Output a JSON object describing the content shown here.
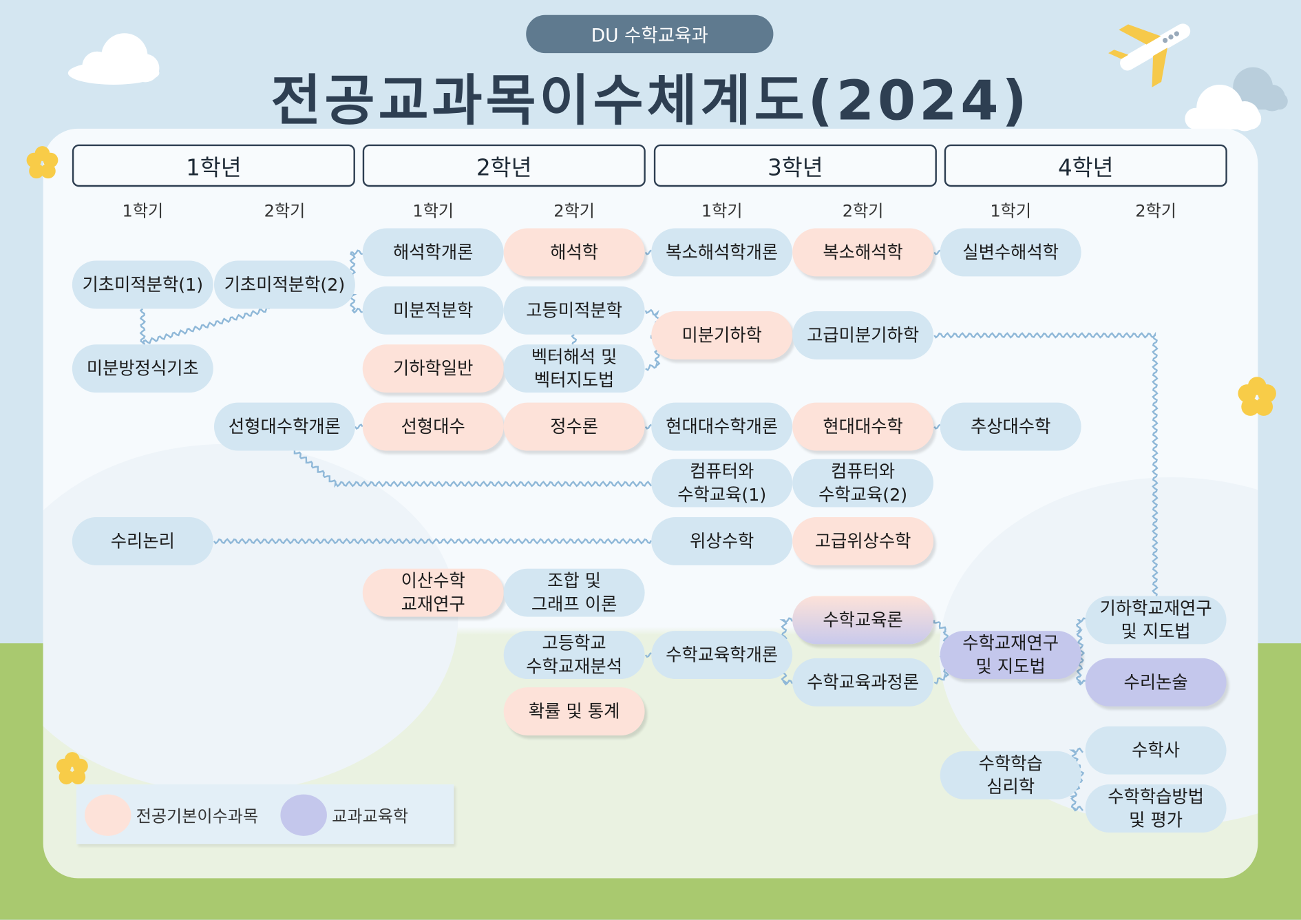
{
  "header": {
    "badge": "DU 수학교육과",
    "title": "전공교과목이수체계도(2024)"
  },
  "years": [
    "1학년",
    "2학년",
    "3학년",
    "4학년"
  ],
  "semesters": [
    "1학기",
    "2학기",
    "1학기",
    "2학기",
    "1학기",
    "2학기",
    "1학기",
    "2학기"
  ],
  "colors": {
    "basic_blue": "#d3e6f2",
    "major_basic_pink": "#fde2d9",
    "subject_education_purple": "#c4c7ec",
    "connector": "#8fb8d8",
    "title": "#2e3f52"
  },
  "courses": [
    {
      "label": "기초미적분학(1)",
      "type": "blue"
    },
    {
      "label": "기초미적분학(2)",
      "type": "blue"
    },
    {
      "label": "미분방정식기초",
      "type": "blue"
    },
    {
      "label": "해석학개론",
      "type": "blue"
    },
    {
      "label": "해석학",
      "type": "pink"
    },
    {
      "label": "복소해석학개론",
      "type": "blue"
    },
    {
      "label": "복소해석학",
      "type": "pink"
    },
    {
      "label": "실변수해석학",
      "type": "blue"
    },
    {
      "label": "미분적분학",
      "type": "blue"
    },
    {
      "label": "고등미적분학",
      "type": "blue"
    },
    {
      "label": "미분기하학",
      "type": "pink"
    },
    {
      "label": "고급미분기하학",
      "type": "blue"
    },
    {
      "label": "기하학일반",
      "type": "pink"
    },
    {
      "label": "벡터해석 및\n벡터지도법",
      "type": "blue"
    },
    {
      "label": "선형대수학개론",
      "type": "blue"
    },
    {
      "label": "선형대수",
      "type": "pink"
    },
    {
      "label": "정수론",
      "type": "pink"
    },
    {
      "label": "현대대수학개론",
      "type": "blue"
    },
    {
      "label": "현대대수학",
      "type": "pink"
    },
    {
      "label": "추상대수학",
      "type": "blue"
    },
    {
      "label": "컴퓨터와\n수학교육(1)",
      "type": "blue"
    },
    {
      "label": "컴퓨터와\n수학교육(2)",
      "type": "blue"
    },
    {
      "label": "수리논리",
      "type": "blue"
    },
    {
      "label": "위상수학",
      "type": "blue"
    },
    {
      "label": "고급위상수학",
      "type": "pink"
    },
    {
      "label": "이산수학\n교재연구",
      "type": "pink"
    },
    {
      "label": "조합 및\n그래프 이론",
      "type": "blue"
    },
    {
      "label": "고등학교\n수학교재분석",
      "type": "blue"
    },
    {
      "label": "확률 및 통계",
      "type": "pink"
    },
    {
      "label": "수학교육학개론",
      "type": "blue"
    },
    {
      "label": "수학교육론",
      "type": "grad"
    },
    {
      "label": "수학교육과정론",
      "type": "blue"
    },
    {
      "label": "수학교재연구\n및 지도법",
      "type": "purple"
    },
    {
      "label": "기하학교재연구\n및 지도법",
      "type": "blue"
    },
    {
      "label": "수리논술",
      "type": "purple"
    },
    {
      "label": "수학학습\n심리학",
      "type": "blue"
    },
    {
      "label": "수학사",
      "type": "blue"
    },
    {
      "label": "수학학습방법\n및 평가",
      "type": "blue"
    }
  ],
  "legend": {
    "major_basic": "전공기본이수과목",
    "subject_education": "교과교육학"
  }
}
